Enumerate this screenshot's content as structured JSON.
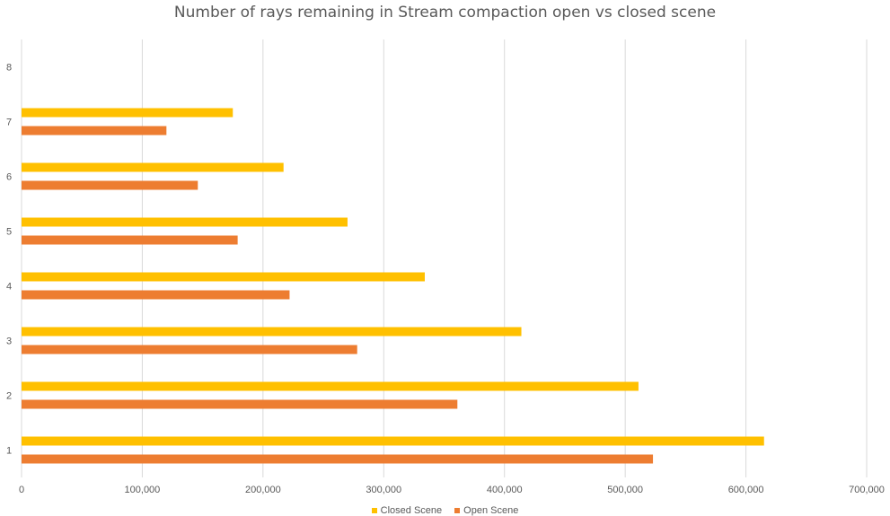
{
  "chart_data": {
    "type": "bar",
    "orientation": "horizontal",
    "title": "Number of rays remaining in Stream compaction open vs closed scene",
    "categories": [
      "1",
      "2",
      "3",
      "4",
      "5",
      "6",
      "7",
      "8"
    ],
    "series": [
      {
        "name": "Closed Scene",
        "color": "#FFC000",
        "values": [
          615000,
          511000,
          414000,
          334000,
          270000,
          217000,
          175000,
          null
        ]
      },
      {
        "name": "Open Scene",
        "color": "#ED7D31",
        "values": [
          523000,
          361000,
          278000,
          222000,
          179000,
          146000,
          120000,
          null
        ]
      }
    ],
    "xlim": [
      0,
      700000
    ],
    "xticks": [
      0,
      100000,
      200000,
      300000,
      400000,
      500000,
      600000,
      700000
    ],
    "xtick_labels": [
      "0",
      "100,000",
      "200,000",
      "300,000",
      "400,000",
      "500,000",
      "600,000",
      "700,000"
    ],
    "grid": true,
    "legend_position": "bottom"
  }
}
